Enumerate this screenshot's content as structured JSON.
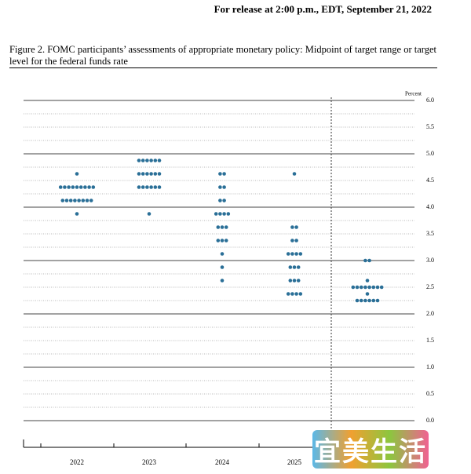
{
  "release": "For release at 2:00 p.m., EDT, September 21, 2022",
  "watermark": "宜美生活",
  "chart_data": {
    "type": "dot",
    "title": "Figure 2.  FOMC participants’ assessments of appropriate monetary policy: Midpoint of target range or target level for the federal funds rate",
    "y_label": "Percent",
    "color": "#2a6f97",
    "categories": [
      "2022",
      "2023",
      "2024",
      "2025",
      null
    ],
    "values": [
      [
        4.625,
        4.375,
        4.375,
        4.375,
        4.375,
        4.375,
        4.375,
        4.375,
        4.375,
        4.375,
        4.125,
        4.125,
        4.125,
        4.125,
        4.125,
        4.125,
        4.125,
        4.125,
        3.875
      ],
      [
        4.875,
        4.875,
        4.875,
        4.875,
        4.875,
        4.875,
        4.625,
        4.625,
        4.625,
        4.625,
        4.625,
        4.625,
        4.375,
        4.375,
        4.375,
        4.375,
        4.375,
        4.375,
        3.875
      ],
      [
        4.625,
        4.625,
        4.375,
        4.375,
        4.125,
        4.125,
        3.875,
        3.875,
        3.875,
        3.875,
        3.625,
        3.625,
        3.625,
        3.375,
        3.375,
        3.375,
        3.125,
        2.875,
        2.625
      ],
      [
        4.625,
        3.625,
        3.625,
        3.375,
        3.375,
        3.125,
        3.125,
        3.125,
        3.125,
        2.875,
        2.875,
        2.875,
        2.625,
        2.625,
        2.625,
        2.375,
        2.375,
        2.375,
        2.375
      ],
      [
        3.0,
        3.0,
        2.625,
        2.5,
        2.5,
        2.5,
        2.5,
        2.5,
        2.5,
        2.5,
        2.5,
        2.375,
        2.25,
        2.25,
        2.25,
        2.25,
        2.25,
        2.25
      ]
    ],
    "ylim": [
      0,
      6
    ],
    "yticks": [
      {
        "value": 0,
        "label": "0.0"
      },
      0.5,
      {
        "value": 1,
        "label": "1.0"
      },
      1.5,
      {
        "value": 2,
        "label": "2.0"
      },
      2.5,
      {
        "value": 3,
        "label": "3.0"
      },
      3.5,
      {
        "value": 4,
        "label": "4.0"
      },
      4.5,
      {
        "value": 5,
        "label": "5.0"
      },
      5.5,
      {
        "value": 6,
        "label": "6.0"
      }
    ],
    "minor_yticks": [
      0.25,
      0.75,
      1.25,
      1.75,
      2.25,
      2.75,
      3.25,
      3.75,
      4.25,
      4.75,
      5.25,
      5.75
    ],
    "grid": true
  }
}
